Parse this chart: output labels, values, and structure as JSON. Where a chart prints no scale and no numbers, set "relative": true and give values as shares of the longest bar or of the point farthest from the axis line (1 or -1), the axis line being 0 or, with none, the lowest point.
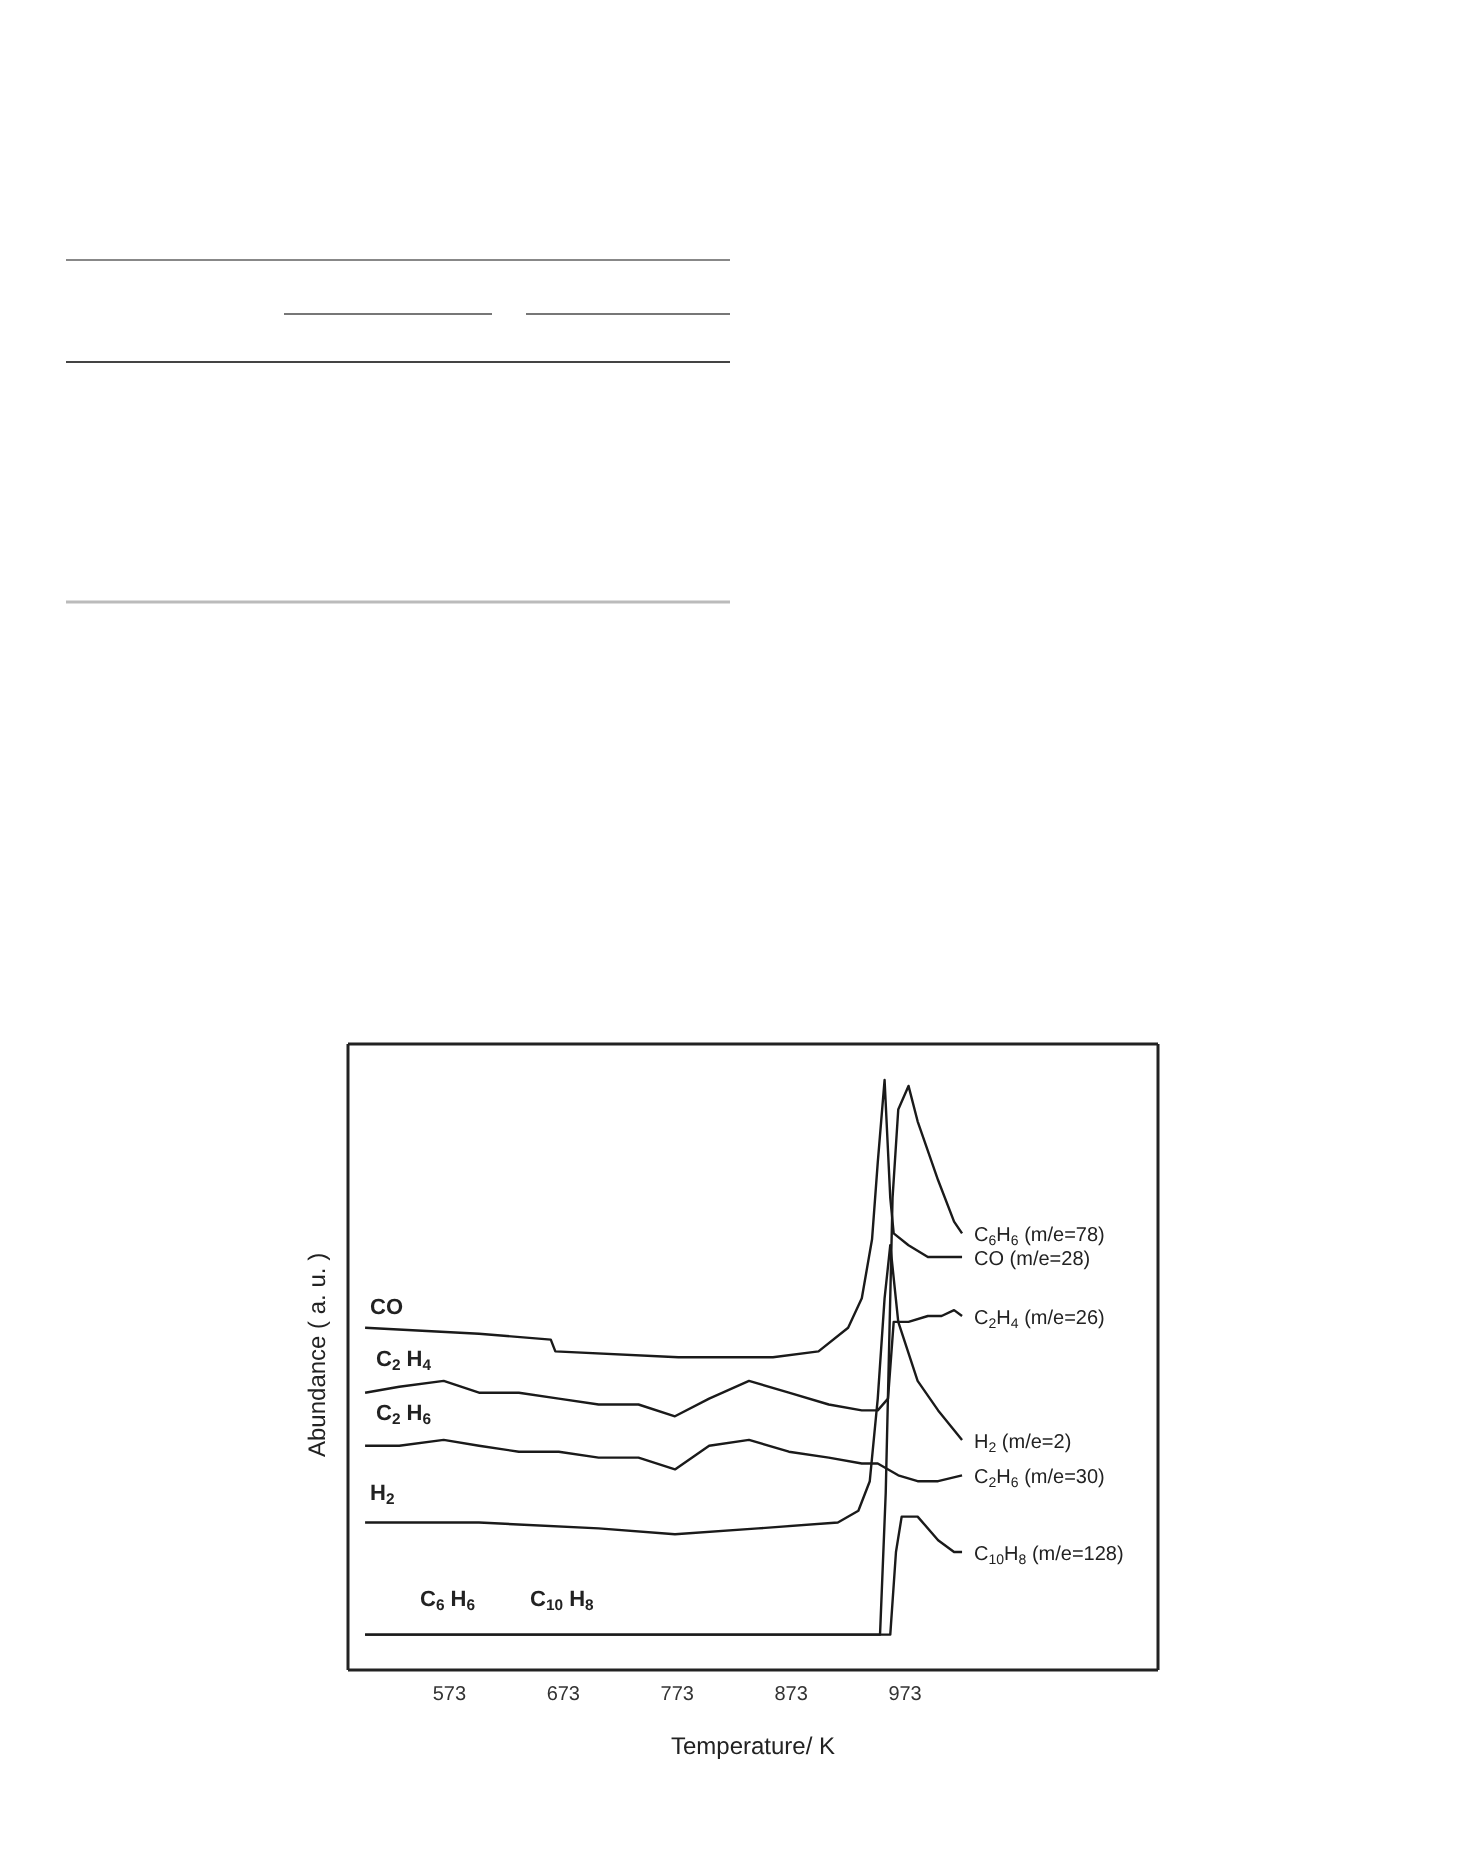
{
  "chart_data": {
    "type": "line",
    "relative": true,
    "xlabel": "Temperature/ K",
    "ylabel": "Abundance ( a. u. )",
    "xlim": [
      484,
      1195
    ],
    "xticks": [
      573,
      673,
      773,
      873,
      973
    ],
    "marker": "none",
    "line_style": "solid",
    "series": [
      {
        "name": "C$_{6}$H$_{6}$ (m/e=78)",
        "color": "#1a1a1a",
        "x": [
          499,
          704,
          951,
          956,
          962,
          967,
          976,
          984,
          1002,
          1016,
          1023
        ],
        "values": [
          0.06,
          0.06,
          0.06,
          0.3,
          0.8,
          0.95,
          0.99,
          0.93,
          0.83,
          0.76,
          0.74
        ]
      },
      {
        "name": "CO (m/e=28)",
        "color": "#1a1a1a",
        "x": [
          499,
          599,
          662,
          666,
          774,
          857,
          897,
          923,
          935,
          944,
          949,
          955,
          960,
          963,
          976,
          993,
          1023
        ],
        "values": [
          0.58,
          0.57,
          0.56,
          0.54,
          0.53,
          0.53,
          0.54,
          0.58,
          0.63,
          0.73,
          0.86,
          1.0,
          0.8,
          0.74,
          0.72,
          0.7,
          0.7
        ]
      },
      {
        "name": "C$_{2}$H$_{4}$ (m/e=26)",
        "color": "#1a1a1a",
        "x": [
          499,
          529,
          568,
          599,
          634,
          669,
          704,
          739,
          771,
          801,
          836,
          871,
          906,
          935,
          949,
          958,
          963,
          976,
          993,
          1005,
          1016,
          1023
        ],
        "values": [
          0.47,
          0.48,
          0.49,
          0.47,
          0.47,
          0.46,
          0.45,
          0.45,
          0.43,
          0.46,
          0.49,
          0.47,
          0.45,
          0.44,
          0.44,
          0.46,
          0.59,
          0.59,
          0.6,
          0.6,
          0.61,
          0.6
        ]
      },
      {
        "name": "H$_{2}$ (m/e=2)",
        "color": "#1a1a1a",
        "x": [
          499,
          599,
          704,
          771,
          844,
          914,
          932,
          942,
          949,
          955,
          960,
          967,
          984,
          1002,
          1023
        ],
        "values": [
          0.25,
          0.25,
          0.24,
          0.23,
          0.24,
          0.25,
          0.27,
          0.32,
          0.46,
          0.63,
          0.72,
          0.59,
          0.49,
          0.44,
          0.39
        ]
      },
      {
        "name": "C$_{2}$H$_{6}$ (m/e=30)",
        "color": "#1a1a1a",
        "x": [
          499,
          529,
          568,
          599,
          634,
          669,
          704,
          739,
          771,
          801,
          836,
          871,
          906,
          935,
          949,
          967,
          984,
          1002,
          1023
        ],
        "values": [
          0.38,
          0.38,
          0.39,
          0.38,
          0.37,
          0.37,
          0.36,
          0.36,
          0.34,
          0.38,
          0.39,
          0.37,
          0.36,
          0.35,
          0.35,
          0.33,
          0.32,
          0.32,
          0.33
        ]
      },
      {
        "name": "C$_{10}$H$_{8}$ (m/e=128)",
        "color": "#1a1a1a",
        "x": [
          499,
          704,
          960,
          965,
          970,
          984,
          1002,
          1016,
          1023
        ],
        "values": [
          0.06,
          0.06,
          0.06,
          0.2,
          0.26,
          0.26,
          0.22,
          0.2,
          0.2
        ]
      }
    ],
    "annotations": [
      "CO",
      "C$_{2}$ H$_{4}$",
      "C$_{2}$ H$_{6}$",
      "H$_{2}$",
      "C$_{6}$ H$_{6}$",
      "C$_{10}$ H$_{8}$"
    ]
  }
}
